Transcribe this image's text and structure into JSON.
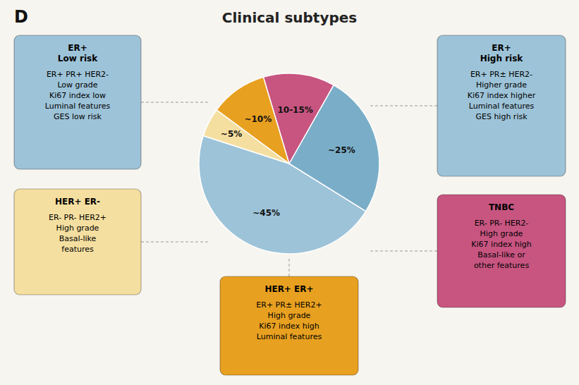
{
  "chart_data": {
    "type": "pie",
    "title": "Clinical subtypes",
    "values": [
      45,
      25,
      12.5,
      10,
      5
    ],
    "value_labels": [
      "~45%",
      "~25%",
      "10-15%",
      "~10%",
      "~5%"
    ],
    "colors": [
      "#9dc3d8",
      "#7aaec8",
      "#c75580",
      "#e8a020",
      "#f5dfa0"
    ],
    "annotations": [
      {
        "text": "D"
      },
      {
        "title": "ER+\nLow risk",
        "text": "ER+ PR+ HER2-\nLow grade\nKi67 index low\nLuminal features\nGES low risk",
        "color": "#9dc3d8"
      },
      {
        "title": "HER+ ER-",
        "text": "ER- PR- HER2+\nHigh grade\nBasal-like\nfeatures",
        "color": "#f5dfa0"
      },
      {
        "title": "ER+\nHigh risk",
        "text": "ER+ PR± HER2-\nHigher grade\nKi67 index higher\nLuminal features\nGES high risk",
        "color": "#9dc3d8"
      },
      {
        "title": "TNBC",
        "text": "ER- PR- HER2-\nHigh grade\nKi67 index high\nBasal-like or\nother features",
        "color": "#c75580"
      },
      {
        "title": "HER+ ER+",
        "text": "ER+ PR± HER2+\nHigh grade\nKi67 index high\nLuminal features",
        "color": "#e8a020"
      }
    ]
  }
}
